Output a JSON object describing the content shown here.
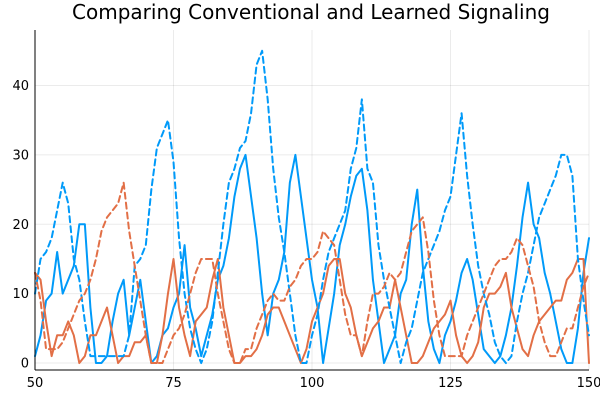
{
  "chart_data": {
    "type": "line",
    "title": "Comparing Conventional and Learned Signaling",
    "xlabel": "",
    "ylabel": "",
    "xlim": [
      50,
      150
    ],
    "ylim": [
      -1,
      48
    ],
    "xticks": [
      50,
      75,
      100,
      125,
      150
    ],
    "yticks": [
      0,
      10,
      20,
      30,
      40
    ],
    "grid": true,
    "legend": "none",
    "colors": {
      "blue": "#009af9",
      "orange": "#e26f46"
    },
    "x": [
      50,
      51,
      52,
      53,
      54,
      55,
      56,
      57,
      58,
      59,
      60,
      61,
      62,
      63,
      64,
      65,
      66,
      67,
      68,
      69,
      70,
      71,
      72,
      73,
      74,
      75,
      76,
      77,
      78,
      79,
      80,
      81,
      82,
      83,
      84,
      85,
      86,
      87,
      88,
      89,
      90,
      91,
      92,
      93,
      94,
      95,
      96,
      97,
      98,
      99,
      100,
      101,
      102,
      103,
      104,
      105,
      106,
      107,
      108,
      109,
      110,
      111,
      112,
      113,
      114,
      115,
      116,
      117,
      118,
      119,
      120,
      121,
      122,
      123,
      124,
      125,
      126,
      127,
      128,
      129,
      130,
      131,
      132,
      133,
      134,
      135,
      136,
      137,
      138,
      139,
      140,
      141,
      142,
      143,
      144,
      145,
      146,
      147,
      148,
      149,
      150
    ],
    "series": [
      {
        "color": "blue",
        "style": "solid",
        "values": [
          1,
          4,
          9,
          10,
          16,
          10,
          12,
          14,
          20,
          20,
          8,
          0,
          0,
          1,
          6,
          10,
          12,
          4,
          8,
          12,
          6,
          0,
          1,
          4,
          5,
          8,
          10,
          17,
          8,
          5,
          1,
          4,
          7,
          12,
          14,
          18,
          24,
          28,
          30,
          24,
          18,
          10,
          4,
          10,
          12,
          16,
          26,
          30,
          24,
          18,
          12,
          8,
          0,
          5,
          10,
          17,
          20,
          24,
          27,
          28,
          22,
          12,
          6,
          0,
          2,
          4,
          10,
          12,
          20,
          25,
          14,
          6,
          2,
          0,
          4,
          6,
          9,
          13,
          15,
          12,
          7,
          2,
          1,
          0,
          1,
          4,
          8,
          14,
          21,
          26,
          20,
          18,
          13,
          10,
          6,
          2,
          0,
          0,
          5,
          13,
          18
        ]
      },
      {
        "color": "orange",
        "style": "solid",
        "values": [
          13,
          12,
          6,
          1,
          4,
          4,
          6,
          4,
          0,
          1,
          4,
          4,
          6,
          8,
          4,
          0,
          1,
          1,
          3,
          3,
          4,
          0,
          0,
          4,
          10,
          15,
          8,
          4,
          1,
          6,
          7,
          8,
          12,
          15,
          8,
          4,
          0,
          0,
          1,
          1,
          2,
          4,
          7,
          8,
          8,
          6,
          4,
          2,
          0,
          2,
          6,
          8,
          10,
          14,
          15,
          15,
          10,
          8,
          4,
          1,
          3,
          5,
          6,
          8,
          8,
          12,
          8,
          4,
          0,
          0,
          1,
          3,
          5,
          6,
          7,
          9,
          4,
          1,
          0,
          1,
          3,
          8,
          10,
          10,
          11,
          13,
          8,
          5,
          2,
          1,
          4,
          6,
          7,
          8,
          9,
          9,
          12,
          13,
          15,
          15,
          0
        ]
      },
      {
        "color": "blue",
        "style": "dashed",
        "values": [
          10,
          15,
          16,
          18,
          22,
          26,
          23,
          15,
          12,
          6,
          1,
          1,
          1,
          1,
          1,
          1,
          1,
          4,
          14,
          15,
          17,
          25,
          31,
          33,
          35,
          29,
          18,
          10,
          5,
          2,
          0,
          2,
          6,
          13,
          20,
          26,
          28,
          31,
          32,
          36,
          43,
          45,
          38,
          28,
          21,
          16,
          10,
          4,
          0,
          0,
          4,
          7,
          12,
          16,
          18,
          20,
          22,
          28,
          31,
          38,
          28,
          26,
          17,
          12,
          8,
          4,
          0,
          3,
          5,
          9,
          13,
          15,
          17,
          19,
          22,
          24,
          30,
          36,
          27,
          20,
          14,
          10,
          7,
          3,
          1,
          0,
          1,
          6,
          10,
          13,
          17,
          21,
          23,
          25,
          27,
          30,
          30,
          27,
          15,
          9,
          4
        ]
      },
      {
        "color": "orange",
        "style": "dashed",
        "values": [
          13,
          9,
          2,
          2,
          2,
          3,
          5,
          7,
          9,
          10,
          12,
          15,
          19,
          21,
          22,
          23,
          26,
          19,
          14,
          9,
          4,
          0,
          0,
          0,
          2,
          4,
          5,
          7,
          10,
          13,
          15,
          15,
          15,
          10,
          6,
          2,
          0,
          0,
          2,
          2,
          5,
          7,
          9,
          10,
          9,
          9,
          11,
          12,
          14,
          15,
          15,
          16,
          19,
          18,
          17,
          12,
          7,
          4,
          4,
          1,
          6,
          10,
          10,
          11,
          13,
          12,
          13,
          16,
          19,
          20,
          21,
          16,
          9,
          4,
          1,
          1,
          1,
          1,
          4,
          6,
          8,
          10,
          12,
          14,
          15,
          15,
          16,
          18,
          17,
          14,
          11,
          6,
          3,
          1,
          1,
          3,
          5,
          5,
          8,
          11,
          13
        ]
      }
    ]
  }
}
